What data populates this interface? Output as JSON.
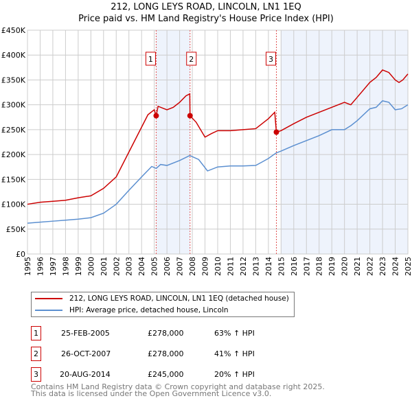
{
  "chart_data": {
    "type": "line",
    "title": "212, LONG LEYS ROAD, LINCOLN, LN1 1EQ",
    "subtitle": "Price paid vs. HM Land Registry's House Price Index (HPI)",
    "xlim": [
      1995,
      2025
    ],
    "ylim": [
      0,
      450000
    ],
    "x_ticks": [
      "1995",
      "1996",
      "1997",
      "1998",
      "1999",
      "2000",
      "2001",
      "2002",
      "2003",
      "2004",
      "2005",
      "2006",
      "2007",
      "2008",
      "2009",
      "2010",
      "2011",
      "2012",
      "2013",
      "2014",
      "2015",
      "2016",
      "2017",
      "2018",
      "2019",
      "2020",
      "2021",
      "2022",
      "2023",
      "2024",
      "2025"
    ],
    "y_ticks": [
      {
        "v": 0,
        "label": "£0"
      },
      {
        "v": 50000,
        "label": "£50K"
      },
      {
        "v": 100000,
        "label": "£100K"
      },
      {
        "v": 150000,
        "label": "£150K"
      },
      {
        "v": 200000,
        "label": "£200K"
      },
      {
        "v": 250000,
        "label": "£250K"
      },
      {
        "v": 300000,
        "label": "£300K"
      },
      {
        "v": 350000,
        "label": "£350K"
      },
      {
        "v": 400000,
        "label": "£400K"
      },
      {
        "v": 450000,
        "label": "£450K"
      }
    ],
    "grid": true,
    "shaded_ranges": [
      [
        2005.15,
        2007.82
      ],
      [
        2015.0,
        2025
      ]
    ],
    "series": [
      {
        "name": "212, LONG LEYS ROAD, LINCOLN, LN1 1EQ (detached house)",
        "color": "#cc0000",
        "x": [
          1995,
          1996,
          1997,
          1998,
          1999,
          2000,
          2001,
          2002,
          2003,
          2004,
          2004.5,
          2005.0,
          2005.15,
          2005.3,
          2006,
          2006.5,
          2007,
          2007.5,
          2007.8,
          2007.82,
          2008.3,
          2009,
          2009.5,
          2010,
          2011,
          2012,
          2013,
          2013.5,
          2014,
          2014.5,
          2014.63,
          2015,
          2016,
          2017,
          2018,
          2019,
          2020,
          2020.5,
          2021,
          2022,
          2022.5,
          2023,
          2023.5,
          2024,
          2024.3,
          2024.6,
          2025
        ],
        "y": [
          100000,
          104000,
          106000,
          108000,
          113000,
          117000,
          132000,
          155000,
          205000,
          255000,
          280000,
          290000,
          278000,
          297000,
          290000,
          295000,
          305000,
          318000,
          322000,
          278000,
          265000,
          235000,
          242000,
          248000,
          248000,
          250000,
          252000,
          262000,
          272000,
          285000,
          245000,
          248000,
          262000,
          275000,
          285000,
          295000,
          305000,
          300000,
          315000,
          345000,
          355000,
          370000,
          365000,
          350000,
          345000,
          350000,
          362000
        ]
      },
      {
        "name": "HPI: Average price, detached house, Lincoln",
        "color": "#5b8fd0",
        "x": [
          1995,
          1996,
          1997,
          1998,
          1999,
          2000,
          2001,
          2002,
          2003,
          2004,
          2004.8,
          2005.15,
          2005.5,
          2006,
          2007,
          2007.8,
          2008.5,
          2009.2,
          2010,
          2011,
          2012,
          2013,
          2013.5,
          2014,
          2014.6,
          2015,
          2016,
          2017,
          2018,
          2019,
          2020,
          2020.5,
          2021,
          2022,
          2022.5,
          2023,
          2023.5,
          2024,
          2024.5,
          2025
        ],
        "y": [
          62000,
          64000,
          66000,
          68000,
          70000,
          73000,
          82000,
          100000,
          128000,
          155000,
          176000,
          172000,
          180000,
          178000,
          188000,
          198000,
          190000,
          167000,
          175000,
          177000,
          177000,
          178000,
          185000,
          192000,
          203000,
          207000,
          218000,
          228000,
          238000,
          250000,
          250000,
          258000,
          268000,
          292000,
          295000,
          308000,
          305000,
          290000,
          292000,
          300000
        ]
      }
    ],
    "sales": [
      {
        "label": "1",
        "x": 2005.15,
        "y": 278000,
        "date": "25-FEB-2005",
        "price": "£278,000",
        "hpi": "63% ↑ HPI"
      },
      {
        "label": "2",
        "x": 2007.82,
        "y": 278000,
        "date": "26-OCT-2007",
        "price": "£278,000",
        "hpi": "41% ↑ HPI"
      },
      {
        "label": "3",
        "x": 2014.63,
        "y": 245000,
        "date": "20-AUG-2014",
        "price": "£245,000",
        "hpi": "20% ↑ HPI"
      }
    ]
  },
  "legend": {
    "red": "212, LONG LEYS ROAD, LINCOLN, LN1 1EQ (detached house)",
    "blue": "HPI: Average price, detached house, Lincoln"
  },
  "footer": {
    "line1": "Contains HM Land Registry data © Crown copyright and database right 2025.",
    "line2": "This data is licensed under the Open Government Licence v3.0."
  }
}
